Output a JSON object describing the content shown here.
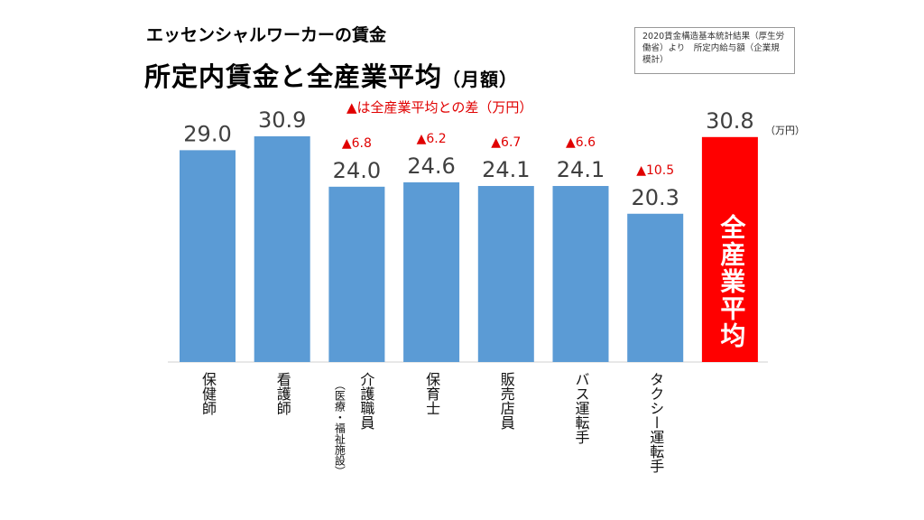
{
  "header": {
    "subtitle": "エッセンシャルワーカーの賃金",
    "title_main": "所定内賃金と全産業平均",
    "title_suffix": "（月額）"
  },
  "source_note": "2020賃金構造基本統計結果（厚生労働省）より　所定内給与額（企業規模計）",
  "difference_note": "▲は全産業平均との差（万円）",
  "unit_label": "（万円）",
  "colors": {
    "bar": "#5b9bd5",
    "average_bar": "#ff0000",
    "diff_text": "#e00000"
  },
  "chart_data": {
    "type": "bar",
    "title": "所定内賃金と全産業平均",
    "unit": "万円",
    "categories": [
      "保健師",
      "看護師",
      "介護職員",
      "保育士",
      "販売店員",
      "バス運転手",
      "タクシー運転手",
      "全産業平均"
    ],
    "category_sublabels": [
      "",
      "",
      "（医療・福祉施設）",
      "",
      "",
      "",
      "",
      ""
    ],
    "values": [
      29.0,
      30.9,
      24.0,
      24.6,
      24.1,
      24.1,
      20.3,
      30.8
    ],
    "value_labels": [
      "29.0",
      "30.9",
      "24.0",
      "24.6",
      "24.1",
      "24.1",
      "20.3",
      "30.8"
    ],
    "differences": [
      "",
      "",
      "▲6.8",
      "▲6.2",
      "▲6.7",
      "▲6.6",
      "▲10.5",
      ""
    ],
    "average_bar_text": "全産業平均",
    "ylim": [
      0,
      33
    ]
  }
}
